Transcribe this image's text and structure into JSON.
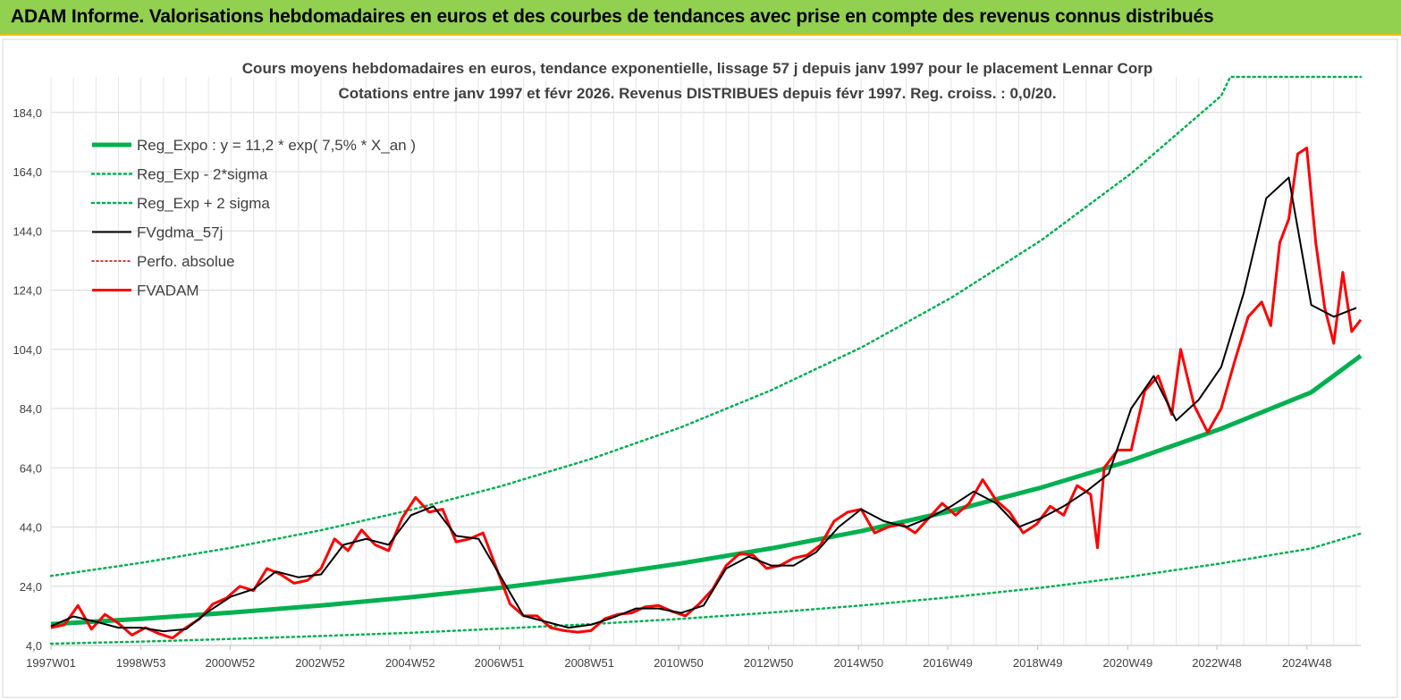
{
  "header": {
    "title": "ADAM Informe. Valorisations hebdomadaires en euros et des courbes de tendances avec prise en compte des revenus connus distribués"
  },
  "colors": {
    "banner": "#92d050",
    "reg_expo": "#00b050",
    "fvgdma": "#000000",
    "fvadam": "#ff0000",
    "perfo": "#c00000"
  },
  "chart_data": {
    "type": "line",
    "title": "Cours moyens hebdomadaires en euros, tendance exponentielle, lissage 57 j depuis janv 1997 pour le placement Lennar Corp",
    "subtitle": "Cotations entre janv 1997 et févr 2026. Revenus DISTRIBUES depuis févr 1997. Reg. croiss. : 0,0/20.",
    "xlabel": "",
    "ylabel": "",
    "x_range": [
      1997.0,
      2026.1
    ],
    "ylim": [
      4,
      196
    ],
    "y_ticks": [
      "4,0",
      "24,0",
      "44,0",
      "64,0",
      "84,0",
      "104,0",
      "124,0",
      "144,0",
      "164,0",
      "184,0"
    ],
    "x_ticks": [
      "1997W01",
      "1998W53",
      "2000W52",
      "2002W52",
      "2004W52",
      "2006W51",
      "2008W51",
      "2010W50",
      "2012W50",
      "2014W50",
      "2016W49",
      "2018W49",
      "2020W49",
      "2022W48",
      "2024W48"
    ],
    "grid": true,
    "legend_position": "top-left",
    "series": [
      {
        "name": "Reg_Expo : y = 11,2 * exp( 7,5% *  X_an )",
        "style": "solid-thick",
        "color": "#00b050",
        "x": [
          1997.0,
          1999,
          2001,
          2003,
          2005,
          2007,
          2009,
          2011,
          2013,
          2015,
          2017,
          2019,
          2021,
          2023,
          2025,
          2026.1
        ],
        "values": [
          11.2,
          13.0,
          15.1,
          17.5,
          20.3,
          23.5,
          27.3,
          31.7,
          36.8,
          42.6,
          49.4,
          57.3,
          66.5,
          77.2,
          89.5,
          101.8
        ]
      },
      {
        "name": "Reg_Exp - 2*sigma",
        "style": "dotted",
        "color": "#00b050",
        "x": [
          1997.0,
          1999,
          2001,
          2003,
          2005,
          2007,
          2009,
          2011,
          2013,
          2015,
          2017,
          2019,
          2021,
          2023,
          2025,
          2026.1
        ],
        "values": [
          4.6,
          5.3,
          6.2,
          7.2,
          8.3,
          9.7,
          11.2,
          13.0,
          15.1,
          17.5,
          20.3,
          23.5,
          27.3,
          31.7,
          36.8,
          41.8
        ]
      },
      {
        "name": "Reg_Exp + 2 sigma",
        "style": "dotted",
        "color": "#00b050",
        "x": [
          1997.0,
          1999,
          2001,
          2003,
          2005,
          2007,
          2009,
          2011,
          2013,
          2015,
          2017,
          2019,
          2021,
          2023,
          2023.2,
          2026.1
        ],
        "values": [
          27.5,
          31.9,
          37.0,
          42.9,
          49.8,
          57.8,
          67.0,
          77.7,
          90.2,
          104.6,
          121.4,
          140.8,
          163.4,
          189.6,
          196.0,
          196.0
        ]
      },
      {
        "name": "FVgdma_57j",
        "style": "solid",
        "color": "#000000",
        "x": [
          1997.0,
          1997.5,
          1998.0,
          1998.5,
          1999.0,
          1999.5,
          2000.0,
          2000.5,
          2001.0,
          2001.5,
          2002.0,
          2002.5,
          2003.0,
          2003.5,
          2004.0,
          2004.5,
          2005.0,
          2005.5,
          2006.0,
          2006.5,
          2007.0,
          2007.5,
          2008.0,
          2008.5,
          2009.0,
          2009.5,
          2010.0,
          2010.5,
          2011.0,
          2011.5,
          2012.0,
          2012.5,
          2013.0,
          2013.5,
          2014.0,
          2014.5,
          2015.0,
          2015.5,
          2016.0,
          2016.5,
          2017.0,
          2017.5,
          2018.0,
          2018.5,
          2019.0,
          2019.5,
          2020.0,
          2020.5,
          2021.0,
          2021.5,
          2022.0,
          2022.5,
          2023.0,
          2023.5,
          2024.0,
          2024.5,
          2025.0,
          2025.5,
          2026.0
        ],
        "values": [
          10.5,
          13.8,
          12.0,
          10.0,
          10.0,
          8.8,
          9.5,
          15.5,
          20.5,
          23.0,
          29.0,
          27.0,
          28.0,
          38.0,
          40.0,
          38.0,
          48.0,
          51.0,
          41.0,
          40.0,
          27.0,
          14.0,
          12.0,
          10.0,
          11.0,
          13.5,
          16.5,
          16.5,
          15.0,
          17.5,
          30.0,
          34.0,
          31.0,
          31.0,
          35.5,
          44.0,
          50.0,
          46.0,
          44.0,
          47.0,
          51.0,
          56.0,
          52.0,
          44.0,
          47.0,
          51.0,
          56.0,
          62.0,
          84.0,
          95.0,
          80.0,
          87.0,
          98.0,
          123.0,
          155.0,
          162.0,
          119.0,
          115.0,
          118.0
        ]
      },
      {
        "name": "Perfo. absolue",
        "style": "dotted",
        "color": "#c00000",
        "x": [],
        "values": []
      },
      {
        "name": "FVADAM",
        "style": "solid-thick",
        "color": "#ff0000",
        "x": [
          1997.0,
          1997.3,
          1997.6,
          1997.9,
          1998.2,
          1998.5,
          1998.8,
          1999.1,
          1999.4,
          1999.7,
          2000.0,
          2000.3,
          2000.6,
          2000.9,
          2001.2,
          2001.5,
          2001.8,
          2002.1,
          2002.4,
          2002.7,
          2003.0,
          2003.3,
          2003.6,
          2003.9,
          2004.2,
          2004.5,
          2004.8,
          2005.1,
          2005.4,
          2005.7,
          2006.0,
          2006.3,
          2006.6,
          2006.9,
          2007.2,
          2007.5,
          2007.8,
          2008.1,
          2008.4,
          2008.7,
          2009.0,
          2009.3,
          2009.6,
          2009.9,
          2010.2,
          2010.5,
          2010.8,
          2011.1,
          2011.4,
          2011.7,
          2012.0,
          2012.3,
          2012.6,
          2012.9,
          2013.2,
          2013.5,
          2013.8,
          2014.1,
          2014.4,
          2014.7,
          2015.0,
          2015.3,
          2015.6,
          2015.9,
          2016.2,
          2016.5,
          2016.8,
          2017.1,
          2017.4,
          2017.7,
          2018.0,
          2018.3,
          2018.6,
          2018.9,
          2019.2,
          2019.5,
          2019.8,
          2020.1,
          2020.25,
          2020.4,
          2020.7,
          2021.0,
          2021.3,
          2021.6,
          2021.9,
          2022.1,
          2022.4,
          2022.7,
          2023.0,
          2023.3,
          2023.6,
          2023.9,
          2024.1,
          2024.3,
          2024.5,
          2024.7,
          2024.9,
          2025.1,
          2025.3,
          2025.5,
          2025.7,
          2025.9,
          2026.1
        ],
        "values": [
          10.0,
          11.0,
          17.5,
          9.5,
          14.5,
          11.5,
          7.5,
          10.0,
          8.0,
          6.5,
          10.0,
          13.0,
          18.0,
          20.0,
          24.0,
          22.5,
          30.0,
          28.0,
          25.0,
          26.0,
          30.0,
          40.0,
          36.0,
          43.0,
          38.0,
          36.0,
          47.0,
          54.0,
          49.0,
          50.0,
          39.0,
          40.0,
          42.0,
          30.0,
          18.0,
          14.0,
          14.0,
          10.0,
          9.0,
          8.5,
          9.0,
          13.0,
          14.5,
          15.0,
          17.0,
          17.5,
          15.5,
          14.0,
          18.0,
          23.0,
          31.0,
          35.0,
          34.5,
          30.0,
          31.0,
          33.5,
          34.5,
          38.0,
          46.0,
          49.0,
          50.0,
          42.0,
          44.0,
          45.0,
          42.0,
          47.0,
          52.0,
          48.0,
          52.0,
          60.0,
          53.0,
          49.0,
          42.0,
          45.0,
          51.0,
          48.0,
          58.0,
          55.0,
          37.0,
          64.0,
          70.0,
          70.0,
          90.0,
          95.0,
          82.0,
          104.0,
          85.0,
          76.0,
          84.0,
          100.0,
          115.0,
          120.0,
          112.0,
          140.0,
          148.0,
          170.0,
          172.0,
          140.0,
          118.0,
          106.0,
          130.0,
          110.0,
          114.0
        ]
      }
    ]
  }
}
